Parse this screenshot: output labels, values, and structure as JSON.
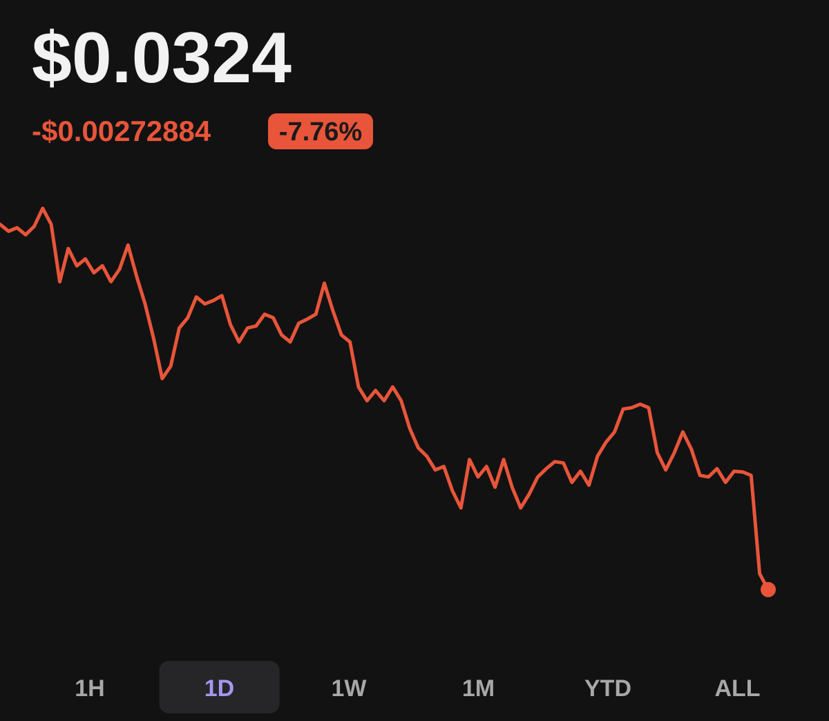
{
  "header": {
    "price": "$0.0324",
    "change": "-$0.00272884",
    "change_percent": "-7.76%"
  },
  "chart_data": {
    "type": "line",
    "color": "#e8553a",
    "ylim": [
      0.0321,
      0.0354
    ],
    "values": [
      0.035129,
      0.035077,
      0.035103,
      0.035051,
      0.035113,
      0.035248,
      0.035129,
      0.0347,
      0.034948,
      0.034819,
      0.03487,
      0.034767,
      0.034819,
      0.0347,
      0.034793,
      0.034974,
      0.034741,
      0.034534,
      0.034276,
      0.033976,
      0.034069,
      0.034354,
      0.034431,
      0.034586,
      0.034534,
      0.03456,
      0.034596,
      0.034379,
      0.03425,
      0.034354,
      0.034369,
      0.034457,
      0.034431,
      0.034302,
      0.03425,
      0.03439,
      0.034421,
      0.034457,
      0.034689,
      0.034483,
      0.034302,
      0.03425,
      0.033914,
      0.033811,
      0.033888,
      0.033811,
      0.033914,
      0.033811,
      0.033604,
      0.033459,
      0.033397,
      0.033294,
      0.03332,
      0.033139,
      0.03301,
      0.033372,
      0.033242,
      0.03332,
      0.033165,
      0.033372,
      0.033165,
      0.03301,
      0.033113,
      0.033242,
      0.033304,
      0.033356,
      0.033346,
      0.033201,
      0.033284,
      0.03318,
      0.033397,
      0.033501,
      0.033578,
      0.033749,
      0.033759,
      0.033785,
      0.033759,
      0.033423,
      0.033294,
      0.033423,
      0.033578,
      0.033449,
      0.033253,
      0.033242,
      0.033304,
      0.033201,
      0.033284,
      0.033279,
      0.033253,
      0.032519,
      0.0324
    ]
  },
  "tabs": {
    "items": [
      "1H",
      "1D",
      "1W",
      "1M",
      "YTD",
      "ALL"
    ],
    "selected": 1
  }
}
